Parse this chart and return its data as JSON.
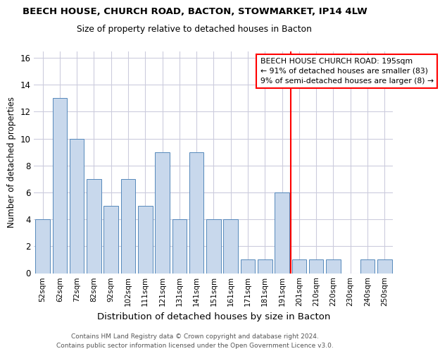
{
  "title": "BEECH HOUSE, CHURCH ROAD, BACTON, STOWMARKET, IP14 4LW",
  "subtitle": "Size of property relative to detached houses in Bacton",
  "xlabel": "Distribution of detached houses by size in Bacton",
  "ylabel": "Number of detached properties",
  "categories": [
    "52sqm",
    "62sqm",
    "72sqm",
    "82sqm",
    "92sqm",
    "102sqm",
    "111sqm",
    "121sqm",
    "131sqm",
    "141sqm",
    "151sqm",
    "161sqm",
    "171sqm",
    "181sqm",
    "191sqm",
    "201sqm",
    "210sqm",
    "220sqm",
    "230sqm",
    "240sqm",
    "250sqm"
  ],
  "values": [
    4,
    13,
    10,
    7,
    5,
    7,
    5,
    9,
    4,
    9,
    4,
    4,
    1,
    1,
    6,
    1,
    1,
    1,
    0,
    1,
    1
  ],
  "bar_color": "#c8d8ec",
  "bar_edge_color": "#5588bb",
  "grid_color": "#ccccdd",
  "vline_x": 14.5,
  "vline_color": "red",
  "annotation_text": "BEECH HOUSE CHURCH ROAD: 195sqm\n← 91% of detached houses are smaller (83)\n9% of semi-detached houses are larger (8) →",
  "annotation_box_color": "white",
  "annotation_edge_color": "red",
  "ylim": [
    0,
    16.5
  ],
  "yticks": [
    0,
    2,
    4,
    6,
    8,
    10,
    12,
    14,
    16
  ],
  "footer1": "Contains HM Land Registry data © Crown copyright and database right 2024.",
  "footer2": "Contains public sector information licensed under the Open Government Licence v3.0."
}
